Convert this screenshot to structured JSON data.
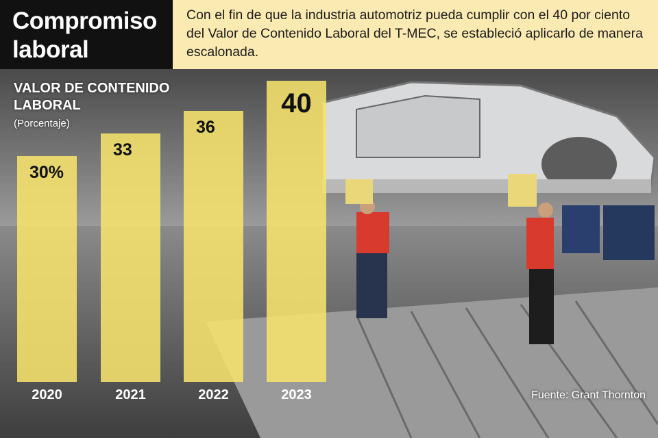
{
  "header": {
    "title": "Compromiso laboral",
    "intro": "Con el fin de que la industria automotriz pueda cumplir con el 40 por ciento del Valor de Contenido Laboral del T-MEC, se estableció aplicarlo de manera escalonada."
  },
  "source": "Fuente: Grant Thornton",
  "colors": {
    "bar": "#f5e36b",
    "header_dark": "#111111",
    "header_light": "#fbeab2"
  },
  "chart_data": {
    "type": "bar",
    "title": "VALOR DE CONTENIDO LABORAL",
    "subtitle": "(Porcentaje)",
    "categories": [
      "2020",
      "2021",
      "2022",
      "2023"
    ],
    "values": [
      30,
      33,
      36,
      40
    ],
    "value_labels": [
      "30%",
      "33",
      "36",
      "40"
    ],
    "ylim": [
      0,
      40
    ],
    "grid": false,
    "legend": "none"
  }
}
